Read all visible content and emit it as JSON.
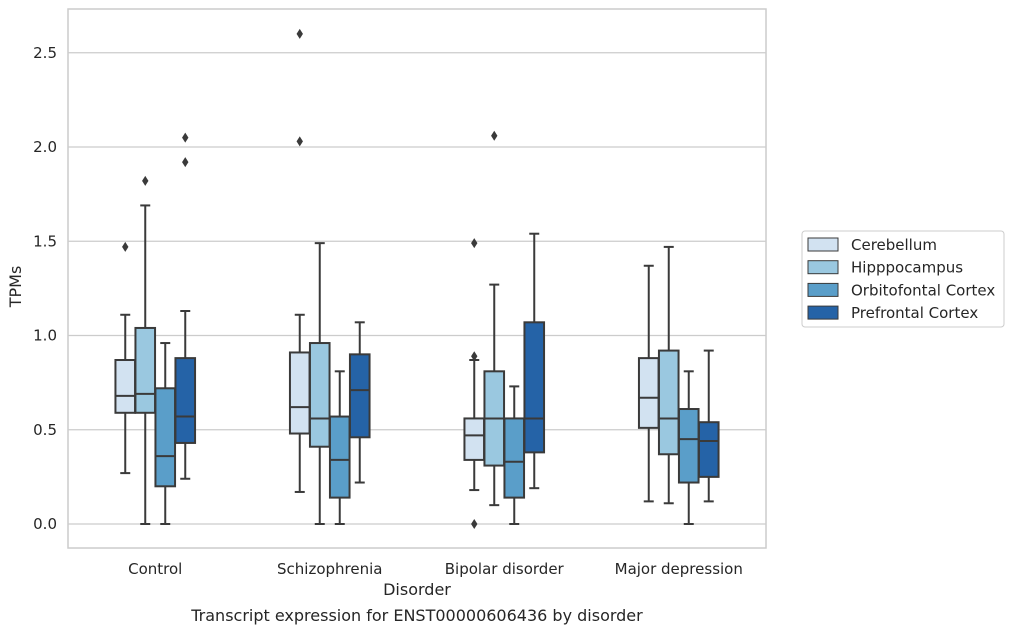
{
  "caption": "Transcript expression for ENST00000606436 by disorder",
  "chart_data": {
    "type": "box",
    "xlabel": "Disorder",
    "ylabel": "TPMs",
    "ylim": [
      -0.13,
      2.76
    ],
    "yticks": [
      "0.0",
      "0.5",
      "1.0",
      "1.5",
      "2.0",
      "2.5"
    ],
    "ytick_values": [
      0,
      0.5,
      1.0,
      1.5,
      2.0,
      2.5
    ],
    "grid": "horizontal",
    "legend_position": "right",
    "categories": [
      "Control",
      "Schizophrenia",
      "Bipolar disorder",
      "Major depression"
    ],
    "series": [
      {
        "name": "Cerebellum",
        "color": "#d2e2f1",
        "boxes": [
          {
            "whisker_low": 0.27,
            "q1": 0.59,
            "median": 0.68,
            "q3": 0.87,
            "whisker_high": 1.11,
            "outliers": [
              1.47
            ]
          },
          {
            "whisker_low": 0.17,
            "q1": 0.48,
            "median": 0.62,
            "q3": 0.91,
            "whisker_high": 1.11,
            "outliers": [
              2.03,
              2.6
            ]
          },
          {
            "whisker_low": 0.18,
            "q1": 0.34,
            "median": 0.47,
            "q3": 0.56,
            "whisker_high": 0.87,
            "outliers": [
              0.0,
              0.89,
              1.49
            ]
          },
          {
            "whisker_low": 0.12,
            "q1": 0.51,
            "median": 0.67,
            "q3": 0.88,
            "whisker_high": 1.37,
            "outliers": []
          }
        ]
      },
      {
        "name": "Hipppocampus",
        "color": "#9ac8e0",
        "boxes": [
          {
            "whisker_low": 0.0,
            "q1": 0.59,
            "median": 0.69,
            "q3": 1.04,
            "whisker_high": 1.69,
            "outliers": [
              1.82
            ]
          },
          {
            "whisker_low": 0.0,
            "q1": 0.41,
            "median": 0.56,
            "q3": 0.96,
            "whisker_high": 1.49,
            "outliers": []
          },
          {
            "whisker_low": 0.1,
            "q1": 0.31,
            "median": 0.56,
            "q3": 0.81,
            "whisker_high": 1.27,
            "outliers": [
              2.06
            ]
          },
          {
            "whisker_low": 0.11,
            "q1": 0.37,
            "median": 0.56,
            "q3": 0.92,
            "whisker_high": 1.47,
            "outliers": []
          }
        ]
      },
      {
        "name": "Orbitofontal Cortex",
        "color": "#5a9ec9",
        "boxes": [
          {
            "whisker_low": 0.0,
            "q1": 0.2,
            "median": 0.36,
            "q3": 0.72,
            "whisker_high": 0.96,
            "outliers": []
          },
          {
            "whisker_low": 0.0,
            "q1": 0.14,
            "median": 0.34,
            "q3": 0.57,
            "whisker_high": 0.81,
            "outliers": []
          },
          {
            "whisker_low": 0.0,
            "q1": 0.14,
            "median": 0.33,
            "q3": 0.56,
            "whisker_high": 0.73,
            "outliers": []
          },
          {
            "whisker_low": 0.0,
            "q1": 0.22,
            "median": 0.45,
            "q3": 0.61,
            "whisker_high": 0.81,
            "outliers": []
          }
        ]
      },
      {
        "name": "Prefrontal Cortex",
        "color": "#2563a7",
        "boxes": [
          {
            "whisker_low": 0.24,
            "q1": 0.43,
            "median": 0.57,
            "q3": 0.88,
            "whisker_high": 1.13,
            "outliers": [
              1.92,
              2.05
            ]
          },
          {
            "whisker_low": 0.22,
            "q1": 0.46,
            "median": 0.71,
            "q3": 0.9,
            "whisker_high": 1.07,
            "outliers": []
          },
          {
            "whisker_low": 0.19,
            "q1": 0.38,
            "median": 0.56,
            "q3": 1.07,
            "whisker_high": 1.54,
            "outliers": []
          },
          {
            "whisker_low": 0.12,
            "q1": 0.25,
            "median": 0.44,
            "q3": 0.54,
            "whisker_high": 0.92,
            "outliers": []
          }
        ]
      }
    ]
  }
}
